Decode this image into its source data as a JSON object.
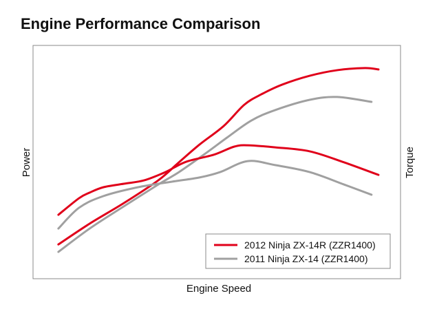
{
  "title": "Engine Performance Comparison",
  "chart_data": {
    "type": "line",
    "title": "Engine Performance Comparison",
    "xlabel": "Engine Speed",
    "ylabel": "Power",
    "y2label": "Torque",
    "xlim": [
      0,
      100
    ],
    "ylim": [
      0,
      100
    ],
    "grid": false,
    "legend_placement": "bottom-right",
    "series": [
      {
        "name": "2012 Ninja ZX-14R (ZZR1400)",
        "metric": "power",
        "color": "#e0001a",
        "x": [
          6.9,
          15.4,
          24.7,
          34.1,
          39.7,
          45.3,
          51.9,
          57.5,
          62.2,
          67.8,
          75.3,
          82.8,
          90.3,
          94.0
        ],
        "y": [
          14.7,
          23.6,
          32.4,
          42.2,
          49.9,
          57.5,
          65.5,
          74.6,
          79.1,
          83.2,
          87.0,
          89.4,
          90.3,
          89.7
        ]
      },
      {
        "name": "2011 Ninja ZX-14 (ZZR1400)",
        "metric": "power",
        "color": "#a0a0a0",
        "x": [
          6.9,
          15.4,
          24.7,
          34.1,
          39.7,
          47.2,
          52.8,
          59.4,
          65.9,
          75.3,
          82.8,
          92.1
        ],
        "y": [
          11.5,
          21.5,
          31.0,
          40.4,
          45.7,
          54.0,
          60.5,
          67.8,
          72.3,
          76.7,
          77.9,
          75.8
        ]
      },
      {
        "name": "2012 Ninja ZX-14R (ZZR1400)",
        "metric": "torque",
        "color": "#e0001a",
        "x": [
          6.9,
          12.5,
          15.4,
          19.1,
          24.7,
          30.3,
          36.0,
          41.6,
          49.1,
          54.7,
          58.4,
          65.9,
          75.3,
          84.6,
          94.0
        ],
        "y": [
          27.4,
          34.5,
          36.9,
          39.2,
          40.7,
          42.2,
          45.7,
          50.1,
          53.1,
          56.6,
          57.2,
          56.3,
          54.6,
          49.9,
          44.5
        ]
      },
      {
        "name": "2011 Ninja ZX-14 (ZZR1400)",
        "metric": "torque",
        "color": "#a0a0a0",
        "x": [
          6.9,
          12.5,
          19.1,
          28.5,
          37.8,
          45.3,
          50.9,
          58.4,
          65.9,
          75.3,
          84.6,
          92.1
        ],
        "y": [
          21.5,
          30.4,
          35.4,
          39.2,
          41.6,
          43.4,
          45.7,
          50.4,
          48.7,
          45.7,
          40.4,
          36.0
        ]
      }
    ],
    "legend": [
      {
        "label": "2012 Ninja ZX-14R (ZZR1400)",
        "color": "#e0001a"
      },
      {
        "label": "2011 Ninja ZX-14 (ZZR1400)",
        "color": "#a0a0a0"
      }
    ]
  }
}
